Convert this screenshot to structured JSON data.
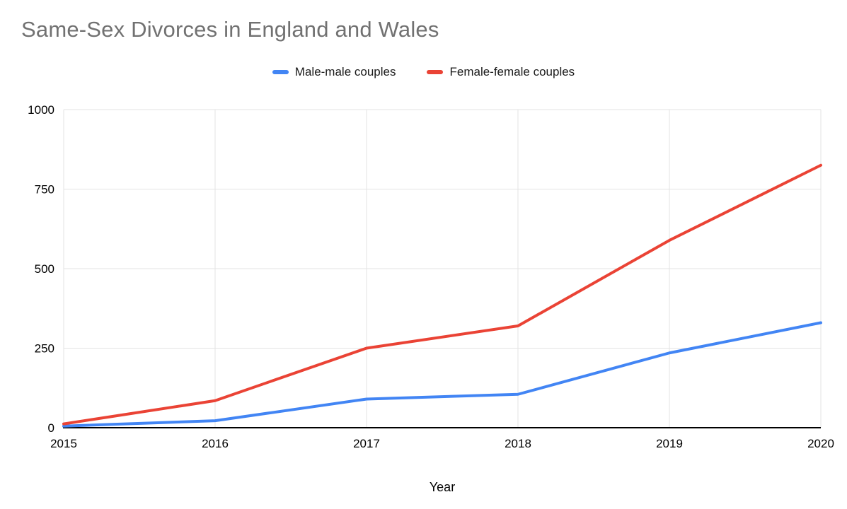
{
  "chart_data": {
    "type": "line",
    "title": "Same-Sex Divorces in England and Wales",
    "xlabel": "Year",
    "ylabel": "",
    "categories": [
      "2015",
      "2016",
      "2017",
      "2018",
      "2019",
      "2020"
    ],
    "ylim": [
      0,
      1000
    ],
    "yticks": [
      0,
      250,
      500,
      750,
      1000
    ],
    "grid": true,
    "legend_position": "top",
    "colors": {
      "grid": "#e3e3e3",
      "axis": "#000000",
      "tick_text": "#000000",
      "title_text": "#717171"
    },
    "series": [
      {
        "name": "Male-male couples",
        "color": "#4285f4",
        "values": [
          5,
          22,
          90,
          105,
          235,
          330
        ]
      },
      {
        "name": "Female-female couples",
        "color": "#ea4335",
        "values": [
          12,
          85,
          250,
          320,
          589,
          825
        ]
      }
    ]
  }
}
